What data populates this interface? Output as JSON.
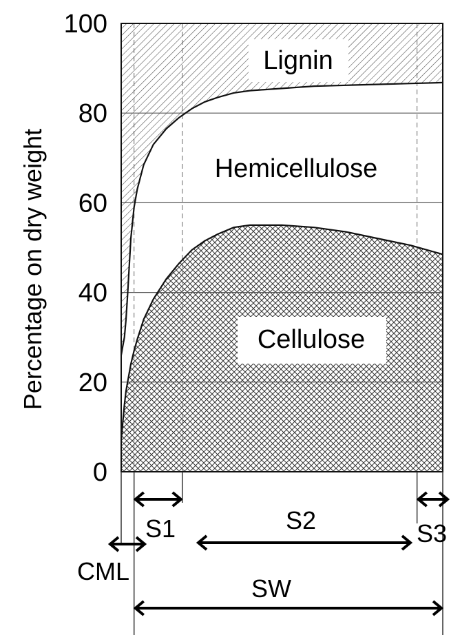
{
  "chart_data": {
    "type": "area",
    "ylabel": "Percentage on dry weight",
    "ylim": [
      0,
      100
    ],
    "yticks": [
      0,
      20,
      40,
      60,
      80,
      100
    ],
    "grid": true,
    "x": [
      0,
      0.5,
      1,
      1.5,
      2,
      3,
      4,
      5,
      7,
      10,
      14,
      18,
      22,
      26,
      30,
      35,
      40,
      50,
      60,
      70,
      80,
      90,
      100
    ],
    "boundaries": {
      "cellulose_upper": [
        7,
        11,
        15,
        18,
        20,
        24,
        27,
        29.5,
        34,
        38.5,
        43,
        46.5,
        49.5,
        51.5,
        53,
        54.5,
        55,
        55,
        54.5,
        53.5,
        52,
        50.5,
        48.5
      ],
      "hemicellulose_upper": [
        26,
        28,
        30,
        34,
        39.5,
        52,
        59,
        63,
        68.5,
        73,
        76.5,
        79,
        81,
        82.5,
        83.5,
        84.5,
        85,
        85.5,
        86,
        86.2,
        86.4,
        86.6,
        86.8
      ]
    },
    "components": [
      {
        "name": "Cellulose"
      },
      {
        "name": "Hemicellulose"
      },
      {
        "name": "Lignin"
      }
    ],
    "layers": [
      {
        "name": "CML",
        "from": 0,
        "to": 4
      },
      {
        "name": "S1",
        "from": 4,
        "to": 19
      },
      {
        "name": "S2",
        "from": 19,
        "to": 92
      },
      {
        "name": "S3",
        "from": 92,
        "to": 100
      },
      {
        "name": "SW",
        "from": 4,
        "to": 100
      }
    ]
  },
  "colors": {
    "ink": "#111111",
    "grid": "#555555",
    "hatch": "#333333"
  }
}
